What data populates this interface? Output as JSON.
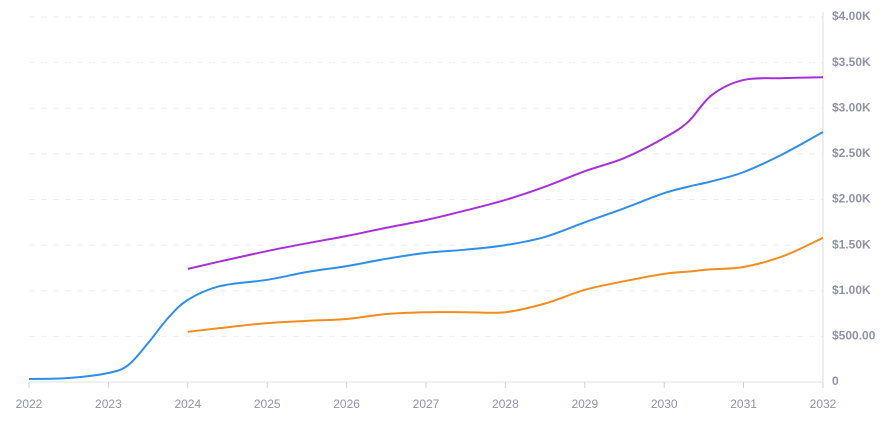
{
  "chart_data": {
    "type": "line",
    "x": [
      2022,
      2022.5,
      2023,
      2023.25,
      2023.5,
      2023.75,
      2024,
      2024.4,
      2025,
      2025.5,
      2026,
      2026.5,
      2027,
      2027.5,
      2028,
      2028.5,
      2029,
      2029.5,
      2030,
      2030.3,
      2030.6,
      2031,
      2031.5,
      2032
    ],
    "series": [
      {
        "color": "#2f8fe8",
        "values": [
          33,
          44,
          99,
          186,
          427,
          700,
          900,
          1050,
          1120,
          1205,
          1270,
          1350,
          1415,
          1450,
          1500,
          1590,
          1750,
          1905,
          2070,
          2140,
          2200,
          2300,
          2500,
          2740
        ]
      },
      {
        "color": "#a830d8",
        "values": [
          null,
          null,
          null,
          null,
          null,
          null,
          1240,
          1320,
          1435,
          1520,
          1600,
          1690,
          1775,
          1880,
          1995,
          2140,
          2310,
          2455,
          2675,
          2850,
          3145,
          3310,
          3330,
          3340
        ]
      },
      {
        "color": "#f28c1e",
        "values": [
          null,
          null,
          null,
          null,
          null,
          null,
          550,
          590,
          645,
          670,
          690,
          745,
          765,
          765,
          765,
          860,
          1010,
          1105,
          1185,
          1210,
          1235,
          1260,
          1380,
          1580
        ]
      }
    ],
    "xlim": [
      2022,
      2032
    ],
    "xticks": [
      2022,
      2023,
      2024,
      2025,
      2026,
      2027,
      2028,
      2029,
      2030,
      2031,
      2032
    ],
    "ylim": [
      0,
      4000
    ],
    "yticks": [
      0,
      {
        "value": 500,
        "label": "$500.00"
      },
      {
        "value": 1000,
        "label": "$1.00K"
      },
      {
        "value": 1500,
        "label": "$1.50K"
      },
      {
        "value": 2000,
        "label": "$2.00K"
      },
      {
        "value": 2500,
        "label": "$2.50K"
      },
      {
        "value": 3000,
        "label": "$3.00K"
      },
      {
        "value": 3500,
        "label": "$3.50K"
      },
      {
        "value": 4000,
        "label": "$4.00K"
      }
    ],
    "grid": true
  }
}
